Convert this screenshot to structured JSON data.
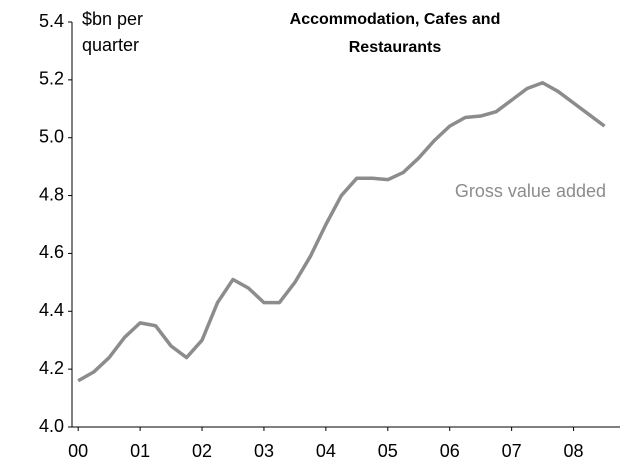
{
  "chart_data": {
    "type": "line",
    "title": [
      "Accommodation, Cafes and",
      "Restaurants"
    ],
    "y_label": [
      "$bn per",
      "quarter"
    ],
    "annotation": "Gross value added",
    "x": [
      0,
      0.25,
      0.5,
      0.75,
      1,
      1.25,
      1.5,
      1.75,
      2,
      2.25,
      2.5,
      2.75,
      3,
      3.25,
      3.5,
      3.75,
      4,
      4.25,
      4.5,
      4.75,
      5,
      5.25,
      5.5,
      5.75,
      6,
      6.25,
      6.5,
      6.75,
      7,
      7.25,
      7.5,
      7.75,
      8,
      8.25,
      8.5
    ],
    "series": [
      {
        "name": "Gross value added",
        "color": "#8c8c8c",
        "values": [
          4.16,
          4.19,
          4.24,
          4.31,
          4.36,
          4.35,
          4.28,
          4.24,
          4.3,
          4.43,
          4.51,
          4.48,
          4.43,
          4.43,
          4.5,
          4.59,
          4.7,
          4.8,
          4.86,
          4.86,
          4.855,
          4.88,
          4.93,
          4.99,
          5.04,
          5.07,
          5.075,
          5.09,
          5.13,
          5.17,
          5.19,
          5.16,
          5.12,
          5.08,
          5.04
        ]
      }
    ],
    "xlim": [
      -0.1,
      8.75
    ],
    "xticks": [
      {
        "value": 0,
        "label": "00"
      },
      {
        "value": 1,
        "label": "01"
      },
      {
        "value": 2,
        "label": "02"
      },
      {
        "value": 3,
        "label": "03"
      },
      {
        "value": 4,
        "label": "04"
      },
      {
        "value": 5,
        "label": "05"
      },
      {
        "value": 6,
        "label": "06"
      },
      {
        "value": 7,
        "label": "07"
      },
      {
        "value": 8,
        "label": "08"
      }
    ],
    "ylim": [
      4.0,
      5.4
    ],
    "yticks": [
      {
        "value": 4.0,
        "label": "4.0"
      },
      {
        "value": 4.2,
        "label": "4.2"
      },
      {
        "value": 4.4,
        "label": "4.4"
      },
      {
        "value": 4.6,
        "label": "4.6"
      },
      {
        "value": 4.8,
        "label": "4.8"
      },
      {
        "value": 5.0,
        "label": "5.0"
      },
      {
        "value": 5.2,
        "label": "5.2"
      },
      {
        "value": 5.4,
        "label": "5.4"
      }
    ],
    "grid": false
  }
}
